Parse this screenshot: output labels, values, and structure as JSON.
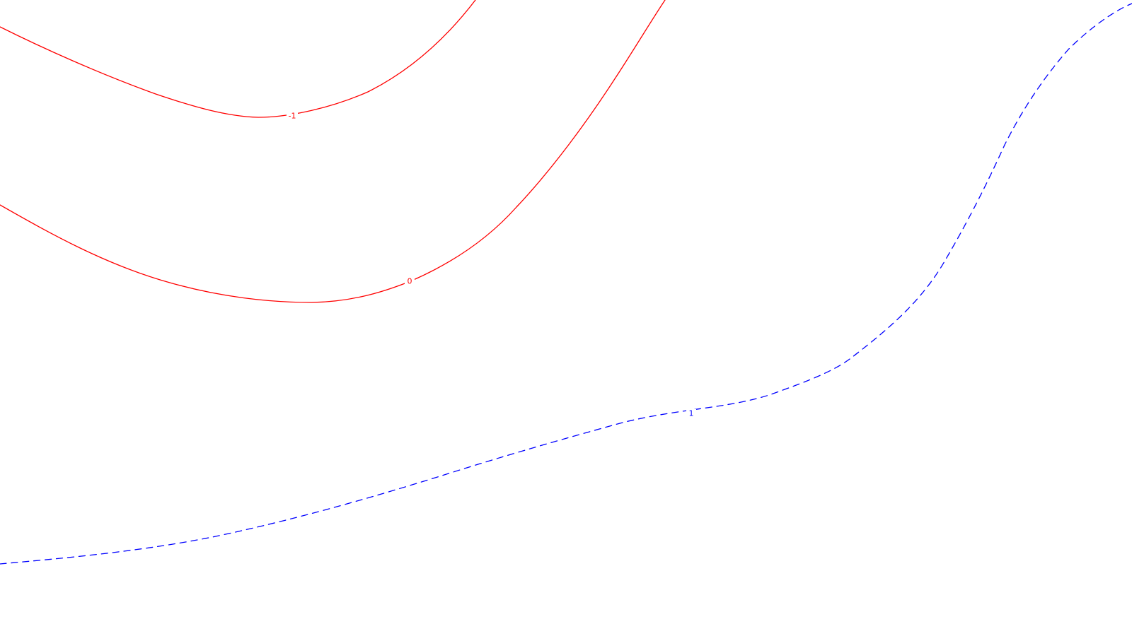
{
  "map": {
    "background_color": "#ffffff",
    "contours": [
      {
        "id": "contour-minus-1",
        "label": "-1",
        "color": "#ff0000",
        "style": "solid"
      },
      {
        "id": "contour-0",
        "label": "0",
        "color": "#ff0000",
        "style": "solid"
      },
      {
        "id": "contour-plus-1",
        "label": "1",
        "color": "#0000ff",
        "style": "dashed"
      }
    ]
  }
}
